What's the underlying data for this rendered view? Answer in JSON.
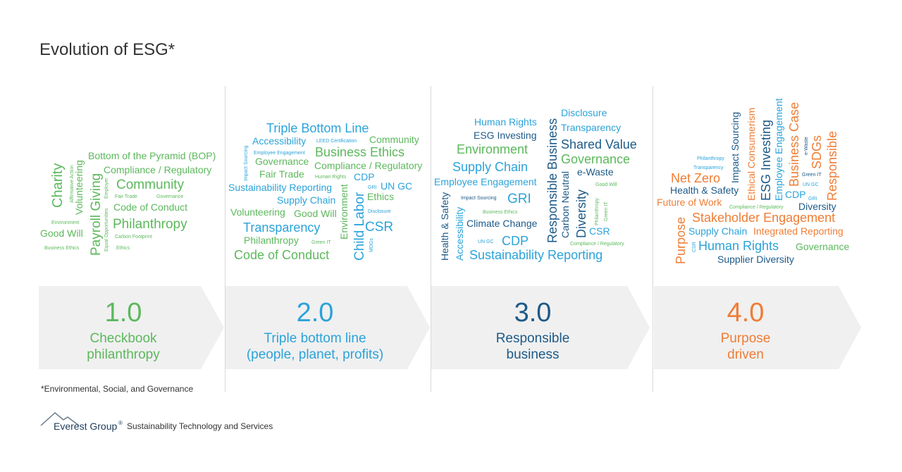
{
  "title": "Evolution of ESG*",
  "footnote": "*Environmental,  Social, and Governance",
  "logo": {
    "brand": "Everest Group",
    "registered": "®",
    "tagline": "Sustainability Technology and Services"
  },
  "eras": [
    {
      "version": "1.0",
      "label": [
        "Checkbook",
        "philanthropy"
      ],
      "words": [
        "Bottom of the Pyramid (BOP)",
        "Compliance / Regulatory",
        "Community",
        "Code of Conduct",
        "Philanthropy",
        "Good Will",
        "Charity",
        "Volunteering",
        "Payroll Giving",
        "Affirmative Action",
        "Employer",
        "Equal Opportunities",
        "Fair Trade",
        "Governance",
        "Environment",
        "Carbon Footprint",
        "Business Ethics",
        "Ethics"
      ]
    },
    {
      "version": "2.0",
      "label": [
        "Triple bottom line",
        "(people, planet, profits)"
      ],
      "words": [
        "Triple Bottom Line",
        "Accessibility",
        "LEED Certification",
        "Community",
        "Impact Sourcing",
        "Employee Engagement",
        "Business Ethics",
        "Governance",
        "Compliance / Regulatory",
        "Fair Trade",
        "Human Rights",
        "CDP",
        "Sustainability Reporting",
        "GRI",
        "UN GC",
        "Supply Chain",
        "Environment",
        "Child Labor",
        "Ethics",
        "Volunteering",
        "Good Will",
        "Disclosure",
        "CSR",
        "Transparency",
        "Philanthropy",
        "Green IT",
        "MDGs",
        "Code of Conduct"
      ]
    },
    {
      "version": "3.0",
      "label": [
        "Responsible",
        "business"
      ],
      "words": [
        "Human Rights",
        "ESG Investing",
        "Environment",
        "Supply Chain",
        "Employee Engagement",
        "Impact Sourcing",
        "GRI",
        "Health & Safety",
        "Accessibility",
        "Business Ethics",
        "Climate Change",
        "UN GC",
        "CDP",
        "Sustainability Reporting",
        "Responsible Business",
        "Disclosure",
        "Transparency",
        "Shared Value",
        "Governance",
        "e-Waste",
        "Carbon Neutral",
        "Diversity",
        "Good Will",
        "Philanthropy",
        "Green IT",
        "CSR",
        "Compliance / Regulatory"
      ]
    },
    {
      "version": "4.0",
      "label": [
        "Purpose",
        "driven"
      ],
      "words": [
        "Philanthropy",
        "Transparency",
        "Impact Sourcing",
        "Ethical Consumerism",
        "ESG Investing",
        "Employee Engagement",
        "e-Waste",
        "Business Case",
        "SDGs",
        "Responsible",
        "Net Zero",
        "Health & Safety",
        "Green IT",
        "UN GC",
        "CDP",
        "GRI",
        "Future of Work",
        "Compliance / Regulatory",
        "Diversity",
        "Stakeholder Engagement",
        "Purpose",
        "CSR",
        "Supply Chain",
        "Integrated Reporting",
        "Human Rights",
        "Governance",
        "Supplier Diversity"
      ]
    }
  ]
}
